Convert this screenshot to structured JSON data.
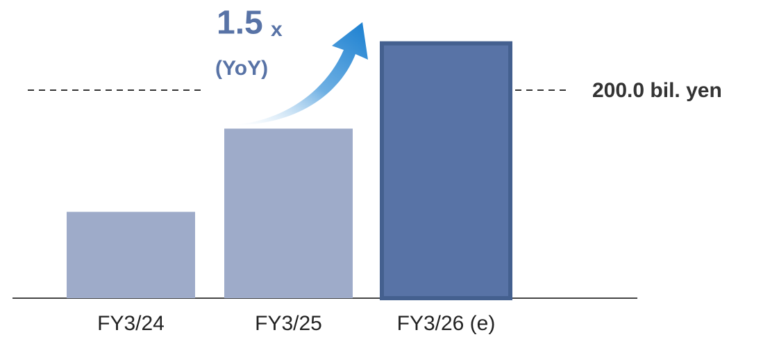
{
  "chart_data": {
    "type": "bar",
    "categories": [
      "FY3/24",
      "FY3/25",
      "FY3/26 (e)"
    ],
    "values": [
      83,
      163,
      245
    ],
    "colors": [
      "#9eabc9",
      "#9eabc9",
      "#5873a6"
    ],
    "edgecolors": [
      null,
      null,
      "#44608f"
    ],
    "ylim": [
      0,
      250
    ],
    "reference_line": {
      "value": 200,
      "label": "200.0 bil. yen"
    },
    "annotation": {
      "multiplier": "1.5",
      "unit": "x",
      "note": "(YoY)"
    }
  }
}
